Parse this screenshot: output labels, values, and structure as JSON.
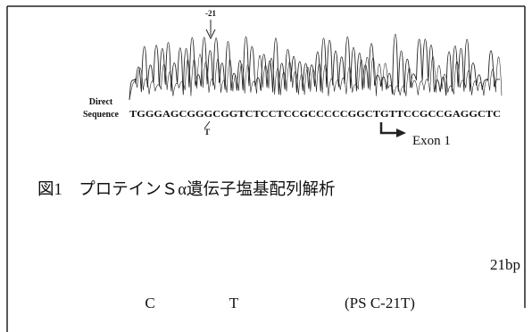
{
  "figure": {
    "position_label": "-21",
    "row_label": [
      "Direct",
      "Sequence"
    ],
    "sequence": "TGGGAGCGGGCGGTCTCCTCCGCCCCCGGCTGTTCCGCCGAGGCTC",
    "variant_base": "T",
    "exon_label": "Exon 1",
    "caption": "図1　プロテインＳα遺伝子塩基配列解析"
  },
  "text": {
    "length": "21bp",
    "base_from": "C",
    "base_to": "T",
    "variant_name": "(PS C-21T)"
  }
}
